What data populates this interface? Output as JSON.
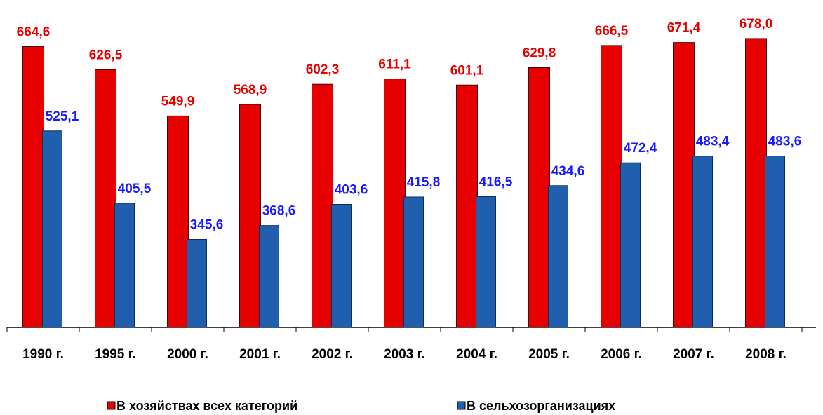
{
  "chart_data": {
    "type": "bar",
    "categories": [
      "1990 г.",
      "1995 г.",
      "2000 г.",
      "2001 г.",
      "2002 г.",
      "2003 г.",
      "2004 г.",
      "2005 г.",
      "2006 г.",
      "2007 г.",
      "2008 г."
    ],
    "series": [
      {
        "name": "В хозяйствах всех категорий",
        "color": "#e60000",
        "values": [
          664.6,
          626.5,
          549.9,
          568.9,
          602.3,
          611.1,
          601.1,
          629.8,
          666.5,
          671.4,
          678.0
        ],
        "value_labels": [
          "664,6",
          "626,5",
          "549,9",
          "568,9",
          "602,3",
          "611,1",
          "601,1",
          "629,8",
          "666,5",
          "671,4",
          "678,0"
        ]
      },
      {
        "name": "В сельхозорганизациях",
        "color": "#1f5fae",
        "values": [
          525.1,
          405.5,
          345.6,
          368.6,
          403.6,
          415.8,
          416.5,
          434.6,
          472.4,
          483.4,
          483.6
        ],
        "value_labels": [
          "525,1",
          "405,5",
          "345,6",
          "368,6",
          "403,6",
          "415,8",
          "416,5",
          "434,6",
          "472,4",
          "483,4",
          "483,6"
        ]
      }
    ],
    "ylim": [
      200,
      700
    ]
  }
}
